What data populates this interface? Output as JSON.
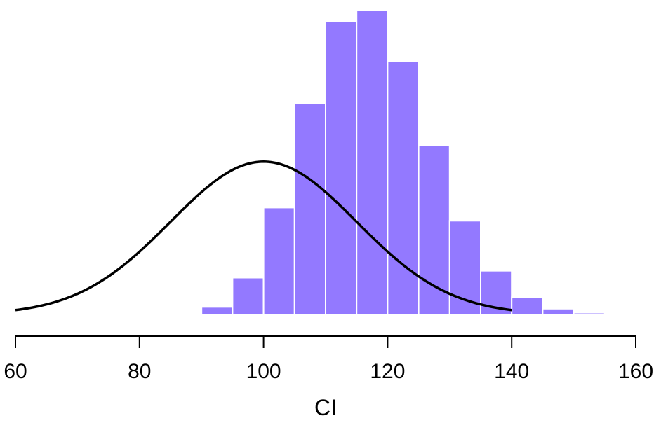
{
  "chart_data": {
    "type": "bar",
    "subtype": "histogram with overlaid normal density curve",
    "xlabel": "CI",
    "ylabel": "",
    "xlim": [
      60,
      160
    ],
    "x_ticks": [
      60,
      80,
      100,
      120,
      140,
      160
    ],
    "y_axis_shown": false,
    "bar_color": "#9379ff",
    "bar_edge_color": "#ffffff",
    "curve_color": "#000000",
    "bins": [
      {
        "start": 90,
        "end": 95,
        "density": 0.0013
      },
      {
        "start": 95,
        "end": 100,
        "density": 0.0064
      },
      {
        "start": 100,
        "end": 105,
        "density": 0.0186
      },
      {
        "start": 105,
        "end": 110,
        "density": 0.0367
      },
      {
        "start": 110,
        "end": 115,
        "density": 0.051
      },
      {
        "start": 115,
        "end": 120,
        "density": 0.053
      },
      {
        "start": 120,
        "end": 125,
        "density": 0.0441
      },
      {
        "start": 125,
        "end": 130,
        "density": 0.0294
      },
      {
        "start": 130,
        "end": 135,
        "density": 0.0163
      },
      {
        "start": 135,
        "end": 140,
        "density": 0.0076
      },
      {
        "start": 140,
        "end": 145,
        "density": 0.003
      },
      {
        "start": 145,
        "end": 150,
        "density": 0.001
      },
      {
        "start": 150,
        "end": 155,
        "density": 0.0003
      }
    ],
    "curve": {
      "distribution": "normal",
      "mean": 100,
      "sd": 15,
      "x_range": [
        60,
        140
      ]
    },
    "ylim": [
      0,
      0.054
    ]
  }
}
